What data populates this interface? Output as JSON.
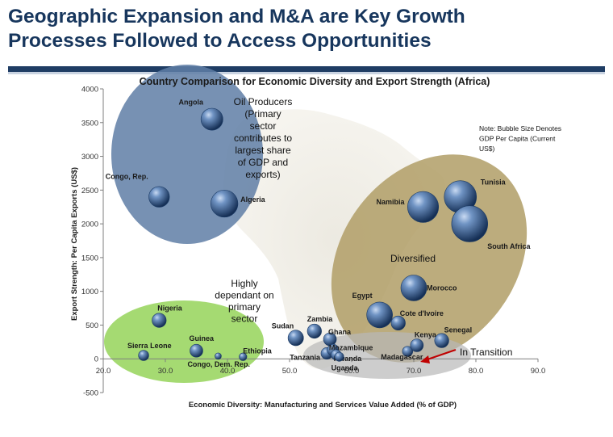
{
  "slide": {
    "title_line1": "Geographic Expansion and M&A are Key Growth",
    "title_line2": "Processes Followed to Access Opportunities"
  },
  "colors": {
    "title": "#17365d",
    "bar": "#1f3d64",
    "bubble_dark": "#1b3b66",
    "bubble_light": "#a9c3e6",
    "oil_cluster": "#5f7ea6",
    "diversified_cluster": "#b09d66",
    "primary_cluster": "#8fd14f",
    "transition_cluster": "#b8b8b8",
    "arrow": "#c00000"
  },
  "chart_data": {
    "type": "scatter",
    "title": "Country Comparison for Economic Diversity and Export Strength (Africa)",
    "xlabel": "Economic Diversity: Manufacturing and Services Value Added (% of GDP)",
    "ylabel": "Export Strength: Per Capita Exports (US$)",
    "xlim": [
      20,
      90
    ],
    "ylim": [
      -500,
      4000
    ],
    "xticks": [
      "20.0",
      "30.0",
      "40.0",
      "50.0",
      "60.0",
      "70.0",
      "80.0",
      "90.0"
    ],
    "yticks": [
      "-500",
      "0",
      "500",
      "1000",
      "1500",
      "2000",
      "2500",
      "3000",
      "3500",
      "4000"
    ],
    "grid": false,
    "points": [
      {
        "name": "Angola",
        "x": 37.5,
        "y": 3550,
        "size": 1.7
      },
      {
        "name": "Congo, Rep.",
        "x": 29,
        "y": 2400,
        "size": 1.6
      },
      {
        "name": "Algeria",
        "x": 39.5,
        "y": 2300,
        "size": 2.1
      },
      {
        "name": "Namibia",
        "x": 71.5,
        "y": 2250,
        "size": 2.4
      },
      {
        "name": "Tunisia",
        "x": 77.5,
        "y": 2400,
        "size": 2.5
      },
      {
        "name": "South Africa",
        "x": 79,
        "y": 2000,
        "size": 2.8
      },
      {
        "name": "Morocco",
        "x": 70,
        "y": 1050,
        "size": 2.0
      },
      {
        "name": "Egypt",
        "x": 64.5,
        "y": 650,
        "size": 2.0
      },
      {
        "name": "Cote d'Ivoire",
        "x": 67.5,
        "y": 530,
        "size": 1.1
      },
      {
        "name": "Nigeria",
        "x": 29,
        "y": 570,
        "size": 1.1
      },
      {
        "name": "Sierra Leone",
        "x": 26.5,
        "y": 50,
        "size": 0.8
      },
      {
        "name": "Guinea",
        "x": 35,
        "y": 120,
        "size": 1.0
      },
      {
        "name": "Congo, Dem. Rep.",
        "x": 38.5,
        "y": 40,
        "size": 0.5
      },
      {
        "name": "Ethiopia",
        "x": 42.5,
        "y": 30,
        "size": 0.6
      },
      {
        "name": "Sudan",
        "x": 51,
        "y": 310,
        "size": 1.2
      },
      {
        "name": "Zambia",
        "x": 54,
        "y": 410,
        "size": 1.1
      },
      {
        "name": "Ghana",
        "x": 56.5,
        "y": 290,
        "size": 1.0
      },
      {
        "name": "Tanzania",
        "x": 56,
        "y": 80,
        "size": 0.9
      },
      {
        "name": "Mozambique",
        "x": 57,
        "y": 130,
        "size": 0.9
      },
      {
        "name": "Rwanda",
        "x": 57.5,
        "y": 60,
        "size": 0.8
      },
      {
        "name": "Uganda",
        "x": 58,
        "y": 30,
        "size": 0.7
      },
      {
        "name": "Madagascar",
        "x": 69,
        "y": 110,
        "size": 0.8
      },
      {
        "name": "Kenya",
        "x": 70.5,
        "y": 200,
        "size": 1.0
      },
      {
        "name": "Senegal",
        "x": 74.5,
        "y": 270,
        "size": 1.1
      }
    ],
    "annotations": {
      "oil": [
        "Oil Producers",
        "(Primary",
        "sector",
        "contributes to",
        "largest share",
        "of GDP and",
        "exports)"
      ],
      "diversified": "Diversified",
      "primary": [
        "Highly",
        "dependant on",
        "primary",
        "sector"
      ],
      "transition": "In Transition",
      "note": [
        "Note: Bubble Size Denotes",
        "GDP Per Capita (Current",
        "US$)"
      ]
    }
  }
}
